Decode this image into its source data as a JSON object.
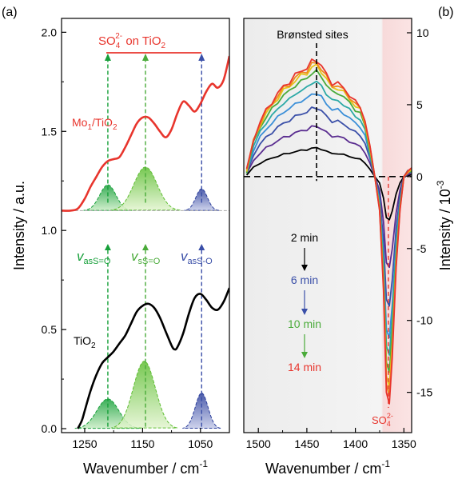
{
  "figure": {
    "panel_a_label": "(a)",
    "panel_b_label": "(b)"
  },
  "colors": {
    "red": "#e8352d",
    "green_dark": "#17a03a",
    "green_light": "#7ccc3c",
    "blue": "#3a4fa8",
    "black": "#000000"
  },
  "chart_data": [
    {
      "type": "line",
      "panel": "a",
      "xlabel": "Wavenumber / cm",
      "xlabel_sup": "-1",
      "ylabel": "Intensity / a.u.",
      "xlim": [
        1290,
        1000
      ],
      "ylim": [
        -0.02,
        2.07
      ],
      "x_ticks": [
        1250,
        1150,
        1050
      ],
      "y_ticks": [
        0.0,
        0.5,
        1.0,
        1.5,
        2.0
      ],
      "y_tick_labels": [
        "0.0",
        "0.5",
        "1.0",
        "1.5",
        "2.0"
      ],
      "series": [
        {
          "name": "Mo1/TiO2",
          "color": "#e8352d",
          "x": [
            1290,
            1275,
            1262,
            1250,
            1240,
            1230,
            1220,
            1210,
            1200,
            1190,
            1180,
            1170,
            1160,
            1150,
            1140,
            1130,
            1120,
            1110,
            1100,
            1090,
            1080,
            1070,
            1060,
            1050,
            1040,
            1030,
            1020,
            1010,
            1000
          ],
          "y": [
            1.1,
            1.1,
            1.11,
            1.16,
            1.22,
            1.27,
            1.32,
            1.35,
            1.36,
            1.37,
            1.42,
            1.48,
            1.54,
            1.57,
            1.57,
            1.54,
            1.5,
            1.47,
            1.51,
            1.59,
            1.65,
            1.63,
            1.6,
            1.64,
            1.7,
            1.74,
            1.72,
            1.76,
            1.88
          ]
        },
        {
          "name": "TiO2",
          "color": "#000000",
          "x": [
            1262,
            1255,
            1250,
            1240,
            1230,
            1220,
            1210,
            1200,
            1190,
            1180,
            1170,
            1160,
            1150,
            1140,
            1130,
            1120,
            1110,
            1100,
            1095,
            1090,
            1080,
            1070,
            1060,
            1050,
            1040,
            1030,
            1020,
            1010,
            1000
          ],
          "y": [
            0.0,
            0.04,
            0.09,
            0.19,
            0.27,
            0.33,
            0.36,
            0.39,
            0.43,
            0.47,
            0.53,
            0.59,
            0.62,
            0.63,
            0.61,
            0.56,
            0.49,
            0.42,
            0.4,
            0.41,
            0.48,
            0.58,
            0.66,
            0.68,
            0.65,
            0.61,
            0.6,
            0.64,
            0.71
          ]
        }
      ],
      "gaussian_bands": [
        {
          "group": "Mo1/TiO2",
          "center": 1210,
          "height": 0.13,
          "width": 14,
          "baseline": 1.1,
          "color": "green"
        },
        {
          "group": "Mo1/TiO2",
          "center": 1145,
          "height": 0.22,
          "width": 20,
          "baseline": 1.1,
          "color": "lightgreen"
        },
        {
          "group": "Mo1/TiO2",
          "center": 1048,
          "height": 0.11,
          "width": 10,
          "baseline": 1.1,
          "color": "blue"
        },
        {
          "group": "TiO2",
          "center": 1210,
          "height": 0.15,
          "width": 19,
          "baseline": 0.0,
          "color": "green"
        },
        {
          "group": "TiO2",
          "center": 1147,
          "height": 0.34,
          "width": 19,
          "baseline": 0.0,
          "color": "lightgreen"
        },
        {
          "group": "TiO2",
          "center": 1048,
          "height": 0.18,
          "width": 11,
          "baseline": 0.0,
          "color": "blue"
        }
      ],
      "markers": [
        1210,
        1145,
        1048
      ],
      "labels": {
        "mo_label": "Mo",
        "mo_sub": "1",
        "mo_rest": "/TiO",
        "mo_sub2": "2",
        "tio_label": "TiO",
        "tio_sub": "2",
        "so4_main": "SO",
        "so4_sub": "4",
        "so4_sup": "2-",
        "so4_rest": " on TiO",
        "so4_sub2": "2",
        "nu1_sub": "asS=O",
        "nu2_sub": "sS=O",
        "nu3_sub": "asS-O",
        "nu_symbol": "v"
      }
    },
    {
      "type": "line",
      "panel": "b",
      "xlabel": "Wavenumber / cm",
      "xlabel_sup": "-1",
      "ylabel": "Intensity / 10",
      "ylabel_sup": "-3",
      "xlim": [
        1515,
        1342
      ],
      "ylim": [
        -17.8,
        11
      ],
      "x_ticks": [
        1500,
        1450,
        1400,
        1350
      ],
      "y_ticks": [
        10,
        5,
        0,
        -5,
        -10,
        -15
      ],
      "y_tick_labels": [
        "10",
        "5",
        "0",
        "-5",
        "-10",
        "-15"
      ],
      "legend": [
        "2 min",
        "6 min",
        "10 min",
        "14 min"
      ],
      "legend_colors": [
        "#000000",
        "#3a4fa8",
        "#4aab3a",
        "#e8352d"
      ],
      "annotations": {
        "bronsted": "Brønsted sites",
        "so4_main": "SO",
        "so4_sub": "4",
        "so4_sup": "2-"
      },
      "series_shape": {
        "x": [
          1512,
          1505,
          1498,
          1492,
          1486,
          1480,
          1474,
          1468,
          1462,
          1456,
          1450,
          1445,
          1440,
          1435,
          1430,
          1424,
          1418,
          1412,
          1406,
          1400,
          1395,
          1390,
          1385,
          1380,
          1375,
          1371,
          1368,
          1365,
          1362,
          1358,
          1354,
          1350,
          1346,
          1342
        ],
        "s": [
          0.05,
          0.32,
          0.47,
          0.57,
          0.64,
          0.71,
          0.78,
          0.81,
          0.87,
          0.91,
          0.93,
          0.99,
          1.0,
          0.95,
          0.88,
          0.8,
          0.8,
          0.76,
          0.7,
          0.64,
          0.6,
          0.48,
          0.25,
          0.0,
          -0.15,
          -0.5,
          -0.95,
          -1.0,
          -0.8,
          -0.4,
          -0.15,
          0.0,
          0.05,
          0.06
        ]
      },
      "series": [
        {
          "name": "2 min",
          "color": "#000000",
          "pos_amp": 2.0,
          "neg_amp": 3.0
        },
        {
          "name": "",
          "color": "#5a2d90",
          "pos_amp": 3.5,
          "neg_amp": 6.3
        },
        {
          "name": "6 min",
          "color": "#3a4fa8",
          "pos_amp": 4.8,
          "neg_amp": 9.0
        },
        {
          "name": "",
          "color": "#3a8fd8",
          "pos_amp": 5.8,
          "neg_amp": 11.2
        },
        {
          "name": "",
          "color": "#2ba9a6",
          "pos_amp": 6.6,
          "neg_amp": 12.4
        },
        {
          "name": "10 min",
          "color": "#4aab3a",
          "pos_amp": 7.3,
          "neg_amp": 13.6
        },
        {
          "name": "",
          "color": "#e6c41a",
          "pos_amp": 7.7,
          "neg_amp": 14.6
        },
        {
          "name": "",
          "color": "#f08a1d",
          "pos_amp": 7.9,
          "neg_amp": 15.2
        },
        {
          "name": "14 min",
          "color": "#e8352d",
          "pos_amp": 8.1,
          "neg_amp": 15.8
        }
      ]
    }
  ]
}
